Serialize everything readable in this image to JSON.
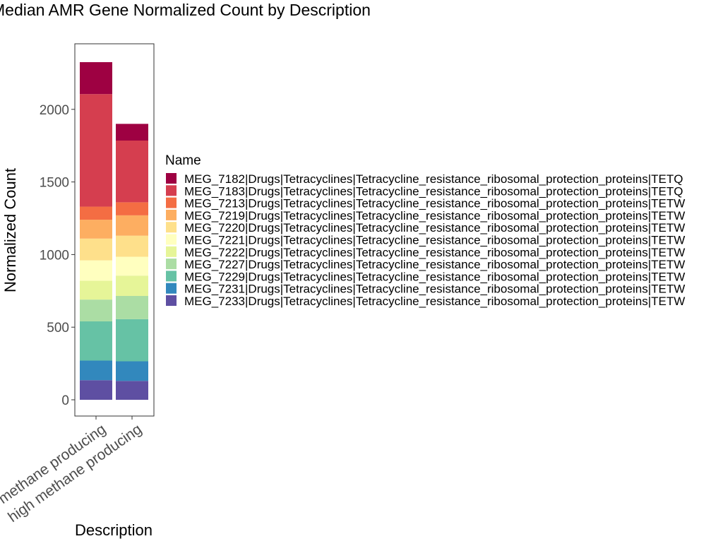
{
  "chart_data": {
    "type": "bar",
    "stacked": true,
    "title": "Median AMR Gene Normalized Count by Description",
    "xlabel": "Description",
    "ylabel": "Normalized Count",
    "categories": [
      "low methane producing",
      "high methane producing"
    ],
    "yticks": [
      0,
      500,
      1000,
      1500,
      2000
    ],
    "ylim": [
      -120,
      2440
    ],
    "legend_title": "Name",
    "legend_position": "right",
    "grid": false,
    "series": [
      {
        "name": "MEG_7233|Drugs|Tetracyclines|Tetracycline_resistance_ribosomal_protection_proteins|TETW",
        "color": "#5E4FA2",
        "values": [
          135,
          130
        ]
      },
      {
        "name": "MEG_7231|Drugs|Tetracyclines|Tetracycline_resistance_ribosomal_protection_proteins|TETW",
        "color": "#3288BD",
        "values": [
          135,
          135
        ]
      },
      {
        "name": "MEG_7229|Drugs|Tetracyclines|Tetracycline_resistance_ribosomal_protection_proteins|TETW",
        "color": "#66C2A5",
        "values": [
          270,
          290
        ]
      },
      {
        "name": "MEG_7227|Drugs|Tetracyclines|Tetracycline_resistance_ribosomal_protection_proteins|TETW",
        "color": "#ABDDA4",
        "values": [
          150,
          160
        ]
      },
      {
        "name": "MEG_7222|Drugs|Tetracyclines|Tetracycline_resistance_ribosomal_protection_proteins|TETW",
        "color": "#E6F598",
        "values": [
          130,
          140
        ]
      },
      {
        "name": "MEG_7221|Drugs|Tetracyclines|Tetracycline_resistance_ribosomal_protection_proteins|TETW",
        "color": "#FFFFBF",
        "values": [
          140,
          130
        ]
      },
      {
        "name": "MEG_7220|Drugs|Tetracyclines|Tetracycline_resistance_ribosomal_protection_proteins|TETW",
        "color": "#FEE08B",
        "values": [
          150,
          145
        ]
      },
      {
        "name": "MEG_7219|Drugs|Tetracyclines|Tetracycline_resistance_ribosomal_protection_proteins|TETW",
        "color": "#FDAE61",
        "values": [
          130,
          140
        ]
      },
      {
        "name": "MEG_7213|Drugs|Tetracyclines|Tetracycline_resistance_ribosomal_protection_proteins|TETW",
        "color": "#F46D43",
        "values": [
          90,
          90
        ]
      },
      {
        "name": "MEG_7183|Drugs|Tetracyclines|Tetracycline_resistance_ribosomal_protection_proteins|TETQ",
        "color": "#D53E4F",
        "values": [
          775,
          425
        ]
      },
      {
        "name": "MEG_7182|Drugs|Tetracyclines|Tetracycline_resistance_ribosomal_protection_proteins|TETQ",
        "color": "#9E0142",
        "values": [
          220,
          115
        ]
      }
    ],
    "legend_order": [
      "MEG_7182",
      "MEG_7183",
      "MEG_7213",
      "MEG_7219",
      "MEG_7220",
      "MEG_7221",
      "MEG_7222",
      "MEG_7227",
      "MEG_7229",
      "MEG_7231",
      "MEG_7233"
    ]
  }
}
